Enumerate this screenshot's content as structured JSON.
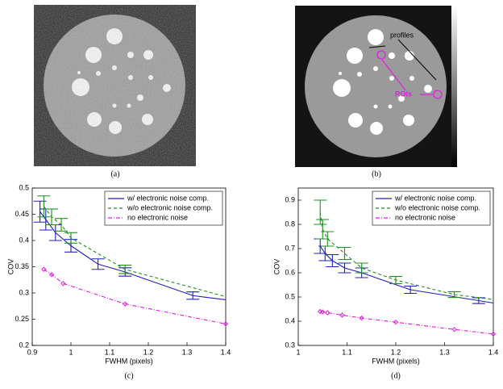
{
  "captions": [
    "(a)",
    "(b)",
    "(c)",
    "(d)"
  ],
  "annotations": {
    "profiles": "profiles",
    "rois": "ROIs"
  },
  "chart_data": [
    {
      "type": "errorbar-line",
      "xlabel": "FWHM (pixels)",
      "ylabel": "COV",
      "xlim": [
        0.9,
        1.4
      ],
      "xticks": [
        0.9,
        1,
        1.1,
        1.2,
        1.3,
        1.4
      ],
      "ylim": [
        0.2,
        0.5
      ],
      "yticks": [
        0.2,
        0.25,
        0.3,
        0.35,
        0.4,
        0.45,
        0.5
      ],
      "legend": "upper right",
      "series": [
        {
          "name": "w/ electronic noise comp.",
          "color": "#1f1fbf",
          "linestyle": "solid",
          "x": [
            0.92,
            0.935,
            0.96,
            1.0,
            1.07,
            1.14,
            1.315,
            1.4
          ],
          "values": [
            0.455,
            0.44,
            0.415,
            0.39,
            0.355,
            0.34,
            0.295,
            0.287
          ],
          "errors": [
            0.02,
            0.02,
            0.015,
            0.012,
            0.01,
            0.008,
            0.007,
            null
          ]
        },
        {
          "name": "w/o electronic noise comp.",
          "color": "#1f8f1f",
          "linestyle": "dashed",
          "x": [
            0.93,
            0.95,
            0.975,
            1.0,
            1.14,
            1.4
          ],
          "values": [
            0.465,
            0.445,
            0.43,
            0.405,
            0.345,
            0.293
          ],
          "errors": [
            0.02,
            0.015,
            0.012,
            0.01,
            0.008,
            null
          ]
        },
        {
          "name": "no electronic noise",
          "color": "#e020e0",
          "linestyle": "dashdot",
          "marker": "diamond",
          "x": [
            0.93,
            0.95,
            0.98,
            1.14,
            1.4
          ],
          "values": [
            0.345,
            0.335,
            0.318,
            0.279,
            0.241
          ]
        }
      ]
    },
    {
      "type": "errorbar-line",
      "xlabel": "FWHM (pixels)",
      "ylabel": "COV",
      "xlim": [
        1,
        1.4
      ],
      "xticks": [
        1,
        1.1,
        1.2,
        1.3,
        1.4
      ],
      "ylim": [
        0.3,
        0.95
      ],
      "yticks": [
        0.3,
        0.4,
        0.5,
        0.6,
        0.7,
        0.8,
        0.9
      ],
      "legend": "upper right",
      "series": [
        {
          "name": "w/ electronic noise comp.",
          "color": "#1f1fbf",
          "linestyle": "solid",
          "x": [
            1.045,
            1.055,
            1.07,
            1.095,
            1.13,
            1.23,
            1.37,
            1.4
          ],
          "values": [
            0.71,
            0.68,
            0.65,
            0.62,
            0.6,
            0.53,
            0.485,
            0.475
          ],
          "errors": [
            0.03,
            0.03,
            0.025,
            0.02,
            0.02,
            0.015,
            0.012,
            null
          ]
        },
        {
          "name": "w/o electronic noise comp.",
          "color": "#1f8f1f",
          "linestyle": "dashed",
          "x": [
            1.045,
            1.05,
            1.06,
            1.095,
            1.13,
            1.2,
            1.32,
            1.4
          ],
          "values": [
            0.85,
            0.78,
            0.74,
            0.68,
            0.62,
            0.57,
            0.51,
            0.49
          ],
          "errors": [
            0.05,
            0.04,
            0.03,
            0.025,
            0.02,
            0.015,
            0.012,
            null
          ]
        },
        {
          "name": "no electronic noise",
          "color": "#e020e0",
          "linestyle": "dashdot",
          "marker": "diamond",
          "x": [
            1.045,
            1.05,
            1.06,
            1.09,
            1.13,
            1.2,
            1.32,
            1.4
          ],
          "values": [
            0.44,
            0.438,
            0.435,
            0.425,
            0.413,
            0.396,
            0.366,
            0.347
          ]
        }
      ]
    }
  ]
}
